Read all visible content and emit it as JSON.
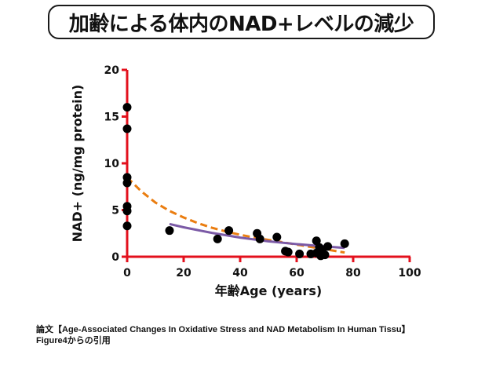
{
  "chart_data": {
    "type": "scatter",
    "title": "加齢による体内のNAD+レベルの減少",
    "xlabel": "年齢Age (years)",
    "ylabel": "NAD+ (ng/mg protein)",
    "xlim": [
      0,
      100
    ],
    "ylim": [
      0,
      20
    ],
    "xticks": [
      0,
      20,
      40,
      60,
      80,
      100
    ],
    "yticks": [
      0,
      5,
      10,
      15,
      20
    ],
    "grid": false,
    "colors": {
      "axis": "#e3101c",
      "points": "#000000",
      "fit_orange": "#ea7d10",
      "fit_purple": "#7b5aa6"
    },
    "points": [
      {
        "x": 0,
        "y": 16.0
      },
      {
        "x": 0,
        "y": 13.7
      },
      {
        "x": 0,
        "y": 8.5
      },
      {
        "x": 0,
        "y": 7.9
      },
      {
        "x": 0,
        "y": 5.4
      },
      {
        "x": 0,
        "y": 4.9
      },
      {
        "x": 0,
        "y": 3.3
      },
      {
        "x": 15,
        "y": 2.8
      },
      {
        "x": 32,
        "y": 1.9
      },
      {
        "x": 36,
        "y": 2.8
      },
      {
        "x": 46,
        "y": 2.5
      },
      {
        "x": 47,
        "y": 1.9
      },
      {
        "x": 53,
        "y": 2.1
      },
      {
        "x": 56,
        "y": 0.6
      },
      {
        "x": 57,
        "y": 0.5
      },
      {
        "x": 61,
        "y": 0.3
      },
      {
        "x": 65,
        "y": 0.3
      },
      {
        "x": 67,
        "y": 1.7
      },
      {
        "x": 67,
        "y": 0.4
      },
      {
        "x": 68,
        "y": 1.0
      },
      {
        "x": 68.5,
        "y": 0.1
      },
      {
        "x": 69,
        "y": 0.7
      },
      {
        "x": 70,
        "y": 0.2
      },
      {
        "x": 71,
        "y": 1.1
      },
      {
        "x": 77,
        "y": 1.4
      }
    ],
    "series": [
      {
        "name": "fit-orange-dashed",
        "style": "dashed",
        "x": [
          0,
          5,
          10,
          15,
          20,
          25,
          30,
          35,
          40,
          45,
          50,
          55,
          60,
          65,
          70,
          77
        ],
        "y": [
          8.5,
          7.0,
          5.8,
          4.9,
          4.2,
          3.6,
          3.1,
          2.7,
          2.35,
          2.05,
          1.8,
          1.55,
          1.3,
          1.05,
          0.8,
          0.45
        ]
      },
      {
        "name": "fit-purple-solid",
        "style": "solid",
        "x": [
          15,
          20,
          30,
          40,
          50,
          60,
          70,
          77
        ],
        "y": [
          3.5,
          3.15,
          2.55,
          2.05,
          1.65,
          1.35,
          1.1,
          0.95
        ]
      }
    ]
  },
  "caption": {
    "line1": "論文【Age-Associated Changes In Oxidative Stress and NAD Metabolism In Human Tissu】",
    "line2": "Figure4からの引用"
  }
}
